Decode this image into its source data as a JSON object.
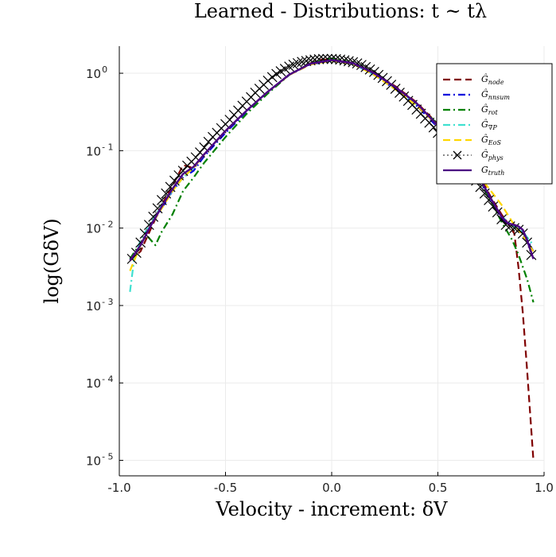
{
  "chart_data": {
    "type": "line",
    "title": "Learned - Distributions:  t ~ tλ",
    "xlabel": "Velocity - increment:  δV",
    "ylabel": "log(GδV)",
    "xscale": "linear",
    "yscale": "log",
    "xlim": [
      -1.0,
      1.0
    ],
    "ylim_log10": [
      -5.2,
      0.35
    ],
    "x_ticks": [
      {
        "value": -1.0,
        "label": "-1.0"
      },
      {
        "value": -0.5,
        "label": "-0.5"
      },
      {
        "value": 0.0,
        "label": "0.0"
      },
      {
        "value": 0.5,
        "label": "0.5"
      },
      {
        "value": 1.0,
        "label": "1.0"
      }
    ],
    "y_ticks": [
      {
        "exp": 0,
        "base": "10",
        "sup": "0"
      },
      {
        "exp": -1,
        "base": "10",
        "sup": "- 1"
      },
      {
        "exp": -2,
        "base": "10",
        "sup": "- 2"
      },
      {
        "exp": -3,
        "base": "10",
        "sup": "- 3"
      },
      {
        "exp": -4,
        "base": "10",
        "sup": "- 4"
      },
      {
        "exp": -5,
        "base": "10",
        "sup": "- 5"
      }
    ],
    "grid": true,
    "legend_position": "top-right",
    "series": [
      {
        "name": "Ĝ node",
        "color": "#800000",
        "dash": "dashed",
        "x": [
          -0.95,
          -0.9,
          -0.85,
          -0.8,
          -0.75,
          -0.7,
          -0.65,
          -0.6,
          -0.5,
          -0.4,
          -0.3,
          -0.2,
          -0.1,
          -0.05,
          0.0,
          0.05,
          0.1,
          0.2,
          0.3,
          0.4,
          0.5,
          0.6,
          0.7,
          0.75,
          0.8,
          0.83,
          0.86,
          0.88,
          0.9,
          0.92,
          0.95
        ],
        "y": [
          0.0038,
          0.005,
          0.01,
          0.02,
          0.035,
          0.065,
          0.06,
          0.09,
          0.18,
          0.33,
          0.58,
          0.95,
          1.35,
          1.5,
          1.5,
          1.45,
          1.35,
          1.0,
          0.68,
          0.42,
          0.22,
          0.11,
          0.045,
          0.025,
          0.015,
          0.0115,
          0.0085,
          0.003,
          0.0008,
          0.00015,
          1e-05
        ]
      },
      {
        "name": "Ĝ nnsum",
        "color": "#0000dd",
        "dash": "dashdot",
        "x": [
          -0.95,
          -0.9,
          -0.85,
          -0.8,
          -0.75,
          -0.7,
          -0.65,
          -0.6,
          -0.5,
          -0.4,
          -0.3,
          -0.2,
          -0.1,
          0.0,
          0.1,
          0.2,
          0.3,
          0.4,
          0.5,
          0.6,
          0.7,
          0.75,
          0.8,
          0.85,
          0.9,
          0.95
        ],
        "y": [
          0.004,
          0.006,
          0.011,
          0.018,
          0.03,
          0.045,
          0.055,
          0.085,
          0.17,
          0.32,
          0.57,
          0.95,
          1.3,
          1.45,
          1.32,
          0.95,
          0.62,
          0.38,
          0.2,
          0.095,
          0.04,
          0.022,
          0.013,
          0.011,
          0.009,
          0.005
        ]
      },
      {
        "name": "Ĝ rot",
        "color": "#008000",
        "dash": "dashdot",
        "x": [
          -0.95,
          -0.9,
          -0.87,
          -0.83,
          -0.8,
          -0.75,
          -0.7,
          -0.65,
          -0.6,
          -0.5,
          -0.4,
          -0.3,
          -0.2,
          -0.1,
          0.0,
          0.1,
          0.2,
          0.3,
          0.4,
          0.5,
          0.6,
          0.7,
          0.75,
          0.8,
          0.85,
          0.88,
          0.92,
          0.95
        ],
        "y": [
          0.004,
          0.0065,
          0.008,
          0.006,
          0.009,
          0.015,
          0.03,
          0.045,
          0.07,
          0.15,
          0.3,
          0.55,
          0.95,
          1.35,
          1.55,
          1.4,
          1.0,
          0.65,
          0.4,
          0.22,
          0.1,
          0.04,
          0.022,
          0.012,
          0.007,
          0.0045,
          0.0022,
          0.0011
        ]
      },
      {
        "name": "Ĝ ∇P",
        "color": "#40e0d0",
        "dash": "dashdot",
        "x": [
          -0.95,
          -0.93,
          -0.9,
          -0.85,
          -0.8,
          -0.75,
          -0.7,
          -0.65,
          -0.6,
          -0.5,
          -0.4,
          -0.3,
          -0.2,
          -0.1,
          0.0,
          0.1,
          0.2,
          0.3,
          0.4,
          0.5,
          0.6,
          0.7,
          0.75,
          0.8,
          0.85,
          0.9,
          0.95
        ],
        "y": [
          0.0015,
          0.004,
          0.007,
          0.012,
          0.02,
          0.03,
          0.045,
          0.06,
          0.09,
          0.18,
          0.33,
          0.58,
          0.96,
          1.32,
          1.45,
          1.32,
          0.96,
          0.64,
          0.4,
          0.21,
          0.1,
          0.042,
          0.024,
          0.014,
          0.011,
          0.009,
          0.006
        ]
      },
      {
        "name": "Ĝ EoS",
        "color": "#ffd700",
        "dash": "dashed",
        "x": [
          -0.95,
          -0.9,
          -0.85,
          -0.8,
          -0.75,
          -0.7,
          -0.65,
          -0.6,
          -0.5,
          -0.4,
          -0.3,
          -0.2,
          -0.1,
          0.0,
          0.1,
          0.2,
          0.3,
          0.4,
          0.5,
          0.6,
          0.7,
          0.75,
          0.8,
          0.85,
          0.9,
          0.95
        ],
        "y": [
          0.0028,
          0.006,
          0.011,
          0.018,
          0.03,
          0.045,
          0.06,
          0.09,
          0.18,
          0.33,
          0.58,
          0.95,
          1.3,
          1.45,
          1.32,
          0.95,
          0.62,
          0.38,
          0.21,
          0.1,
          0.045,
          0.03,
          0.02,
          0.012,
          0.008,
          0.005
        ]
      },
      {
        "name": "Ĝ phys",
        "color": "#000000",
        "dash": "dotted-x",
        "x": [
          -0.94,
          -0.92,
          -0.9,
          -0.88,
          -0.86,
          -0.84,
          -0.82,
          -0.8,
          -0.78,
          -0.76,
          -0.74,
          -0.72,
          -0.7,
          -0.68,
          -0.66,
          -0.64,
          -0.62,
          -0.6,
          -0.58,
          -0.56,
          -0.54,
          -0.52,
          -0.5,
          -0.48,
          -0.46,
          -0.44,
          -0.42,
          -0.4,
          -0.38,
          -0.36,
          -0.34,
          -0.32,
          -0.3,
          -0.28,
          -0.26,
          -0.24,
          -0.22,
          -0.2,
          -0.18,
          -0.16,
          -0.14,
          -0.12,
          -0.1,
          -0.08,
          -0.06,
          -0.04,
          -0.02,
          0.0,
          0.02,
          0.04,
          0.06,
          0.08,
          0.1,
          0.12,
          0.14,
          0.16,
          0.18,
          0.2,
          0.22,
          0.24,
          0.26,
          0.28,
          0.3,
          0.32,
          0.34,
          0.36,
          0.38,
          0.4,
          0.42,
          0.44,
          0.46,
          0.48,
          0.5,
          0.52,
          0.54,
          0.56,
          0.58,
          0.6,
          0.62,
          0.64,
          0.66,
          0.68,
          0.7,
          0.72,
          0.74,
          0.76,
          0.78,
          0.8,
          0.82,
          0.84,
          0.86,
          0.88,
          0.9,
          0.92,
          0.94
        ],
        "y": [
          0.004,
          0.0048,
          0.0065,
          0.0085,
          0.011,
          0.014,
          0.018,
          0.023,
          0.028,
          0.034,
          0.041,
          0.048,
          0.055,
          0.064,
          0.072,
          0.082,
          0.095,
          0.11,
          0.13,
          0.15,
          0.17,
          0.195,
          0.22,
          0.25,
          0.29,
          0.33,
          0.38,
          0.43,
          0.49,
          0.56,
          0.63,
          0.71,
          0.8,
          0.89,
          0.98,
          1.06,
          1.14,
          1.22,
          1.29,
          1.35,
          1.4,
          1.44,
          1.47,
          1.5,
          1.52,
          1.53,
          1.53,
          1.53,
          1.52,
          1.5,
          1.47,
          1.43,
          1.39,
          1.34,
          1.28,
          1.2,
          1.12,
          1.04,
          0.95,
          0.87,
          0.79,
          0.71,
          0.63,
          0.56,
          0.5,
          0.44,
          0.39,
          0.34,
          0.3,
          0.26,
          0.23,
          0.2,
          0.17,
          0.15,
          0.13,
          0.11,
          0.095,
          0.08,
          0.068,
          0.058,
          0.049,
          0.041,
          0.034,
          0.028,
          0.023,
          0.019,
          0.016,
          0.013,
          0.011,
          0.0105,
          0.01,
          0.0095,
          0.0085,
          0.0065,
          0.0045
        ]
      },
      {
        "name": "G truth",
        "color": "#4b0082",
        "dash": "solid",
        "x": [
          -0.95,
          -0.9,
          -0.85,
          -0.8,
          -0.75,
          -0.7,
          -0.65,
          -0.6,
          -0.5,
          -0.4,
          -0.3,
          -0.2,
          -0.1,
          0.0,
          0.1,
          0.2,
          0.3,
          0.4,
          0.5,
          0.6,
          0.7,
          0.75,
          0.8,
          0.83,
          0.86,
          0.88,
          0.9,
          0.92,
          0.95
        ],
        "y": [
          0.0038,
          0.006,
          0.011,
          0.019,
          0.032,
          0.05,
          0.062,
          0.09,
          0.18,
          0.33,
          0.58,
          0.96,
          1.33,
          1.48,
          1.35,
          1.0,
          0.66,
          0.41,
          0.21,
          0.1,
          0.042,
          0.024,
          0.014,
          0.0115,
          0.011,
          0.0105,
          0.0095,
          0.007,
          0.004
        ]
      }
    ]
  },
  "legend": {
    "items": [
      {
        "base": "Ĝ",
        "sub": "node",
        "color": "#800000",
        "dash": "dashed"
      },
      {
        "base": "Ĝ",
        "sub": "nnsum",
        "color": "#0000dd",
        "dash": "dashdot"
      },
      {
        "base": "Ĝ",
        "sub": "rot",
        "color": "#008000",
        "dash": "dashdot"
      },
      {
        "base": "Ĝ",
        "sub": "∇P",
        "color": "#40e0d0",
        "dash": "dashdot"
      },
      {
        "base": "Ĝ",
        "sub": "EoS",
        "color": "#ffd700",
        "dash": "dashed"
      },
      {
        "base": "Ĝ",
        "sub": "phys",
        "color": "#000000",
        "dash": "dotted-x"
      },
      {
        "base": "G",
        "sub": "truth",
        "color": "#4b0082",
        "dash": "solid"
      }
    ]
  }
}
